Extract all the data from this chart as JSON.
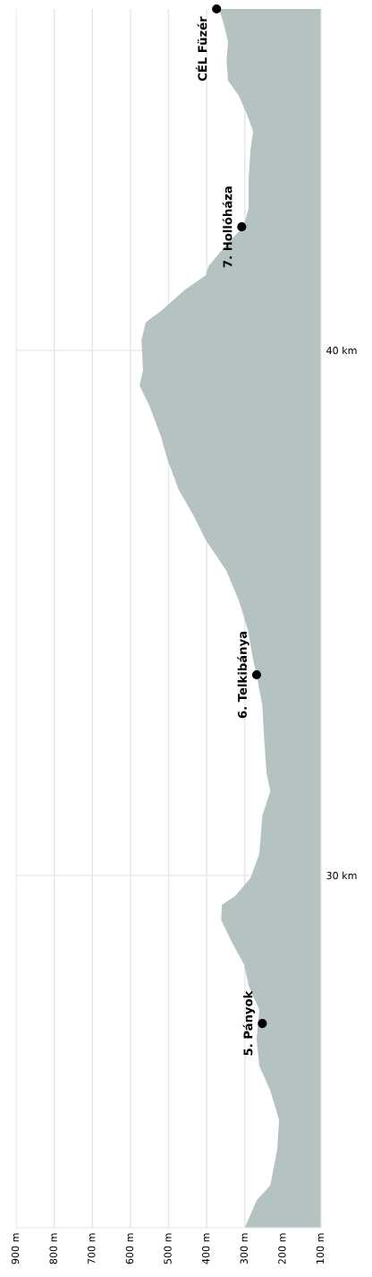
{
  "chart_data": {
    "type": "area",
    "orientation": "horizontal",
    "series": [
      {
        "color": "#b4c2c1",
        "x": [
          23.29,
          23.81,
          24.1,
          24.78,
          25.34,
          25.9,
          26.37,
          26.88,
          27.44,
          27.9,
          28.29,
          28.7,
          29.15,
          29.44,
          29.61,
          29.95,
          30.41,
          31.14,
          31.6,
          31.95,
          32.68,
          33.24,
          33.82,
          34.1,
          34.68,
          35.24,
          35.8,
          36.38,
          36.83,
          37.34,
          37.92,
          38.36,
          38.94,
          39.33,
          39.62,
          40.19,
          40.53,
          40.75,
          41.16,
          41.43,
          41.6,
          42.01,
          42.35,
          42.7,
          43.26,
          43.82,
          44.16,
          44.45,
          44.85,
          45.14,
          45.53,
          45.87,
          46.21,
          46.5
        ],
        "values": [
          300,
          269,
          233,
          215,
          210,
          233,
          262,
          269,
          262,
          290,
          301,
          332,
          362,
          360,
          325,
          285,
          262,
          254,
          233,
          243,
          250,
          254,
          269,
          278,
          292,
          316,
          348,
          402,
          433,
          473,
          503,
          520,
          550,
          576,
          567,
          571,
          560,
          520,
          456,
          402,
          395,
          348,
          304,
          290,
          290,
          285,
          278,
          292,
          316,
          344,
          348,
          344,
          355,
          367
        ]
      },
      {
        "type": "scatter",
        "color": "#000000",
        "marker": "circle",
        "x": [
          27.18,
          33.82,
          42.35,
          46.5
        ],
        "values": [
          254,
          269,
          308,
          374
        ]
      }
    ],
    "annotations": [
      {
        "text": "5. Pányok",
        "x": 254,
        "y": 27.18
      },
      {
        "text": "6. Telkibánya",
        "x": 269,
        "y": 33.82
      },
      {
        "text": "7. Hollóháza",
        "x": 308,
        "y": 42.35
      },
      {
        "text": "CÉL Füzér",
        "x": 374,
        "y": 46.5
      }
    ],
    "xlim": [
      900,
      100
    ],
    "xticks": [
      {
        "value": 900,
        "label": "900 m"
      },
      {
        "value": 800,
        "label": "800 m"
      },
      {
        "value": 700,
        "label": "700 m"
      },
      {
        "value": 600,
        "label": "600 m"
      },
      {
        "value": 500,
        "label": "500 m"
      },
      {
        "value": 400,
        "label": "400 m"
      },
      {
        "value": 300,
        "label": "300 m"
      },
      {
        "value": 200,
        "label": "200 m"
      },
      {
        "value": 100,
        "label": "100 m"
      }
    ],
    "ylim": [
      23.29,
      46.5
    ],
    "yticks": [
      {
        "value": 30,
        "label": "30 km"
      },
      {
        "value": 40,
        "label": "40 km"
      }
    ],
    "grid": true
  }
}
